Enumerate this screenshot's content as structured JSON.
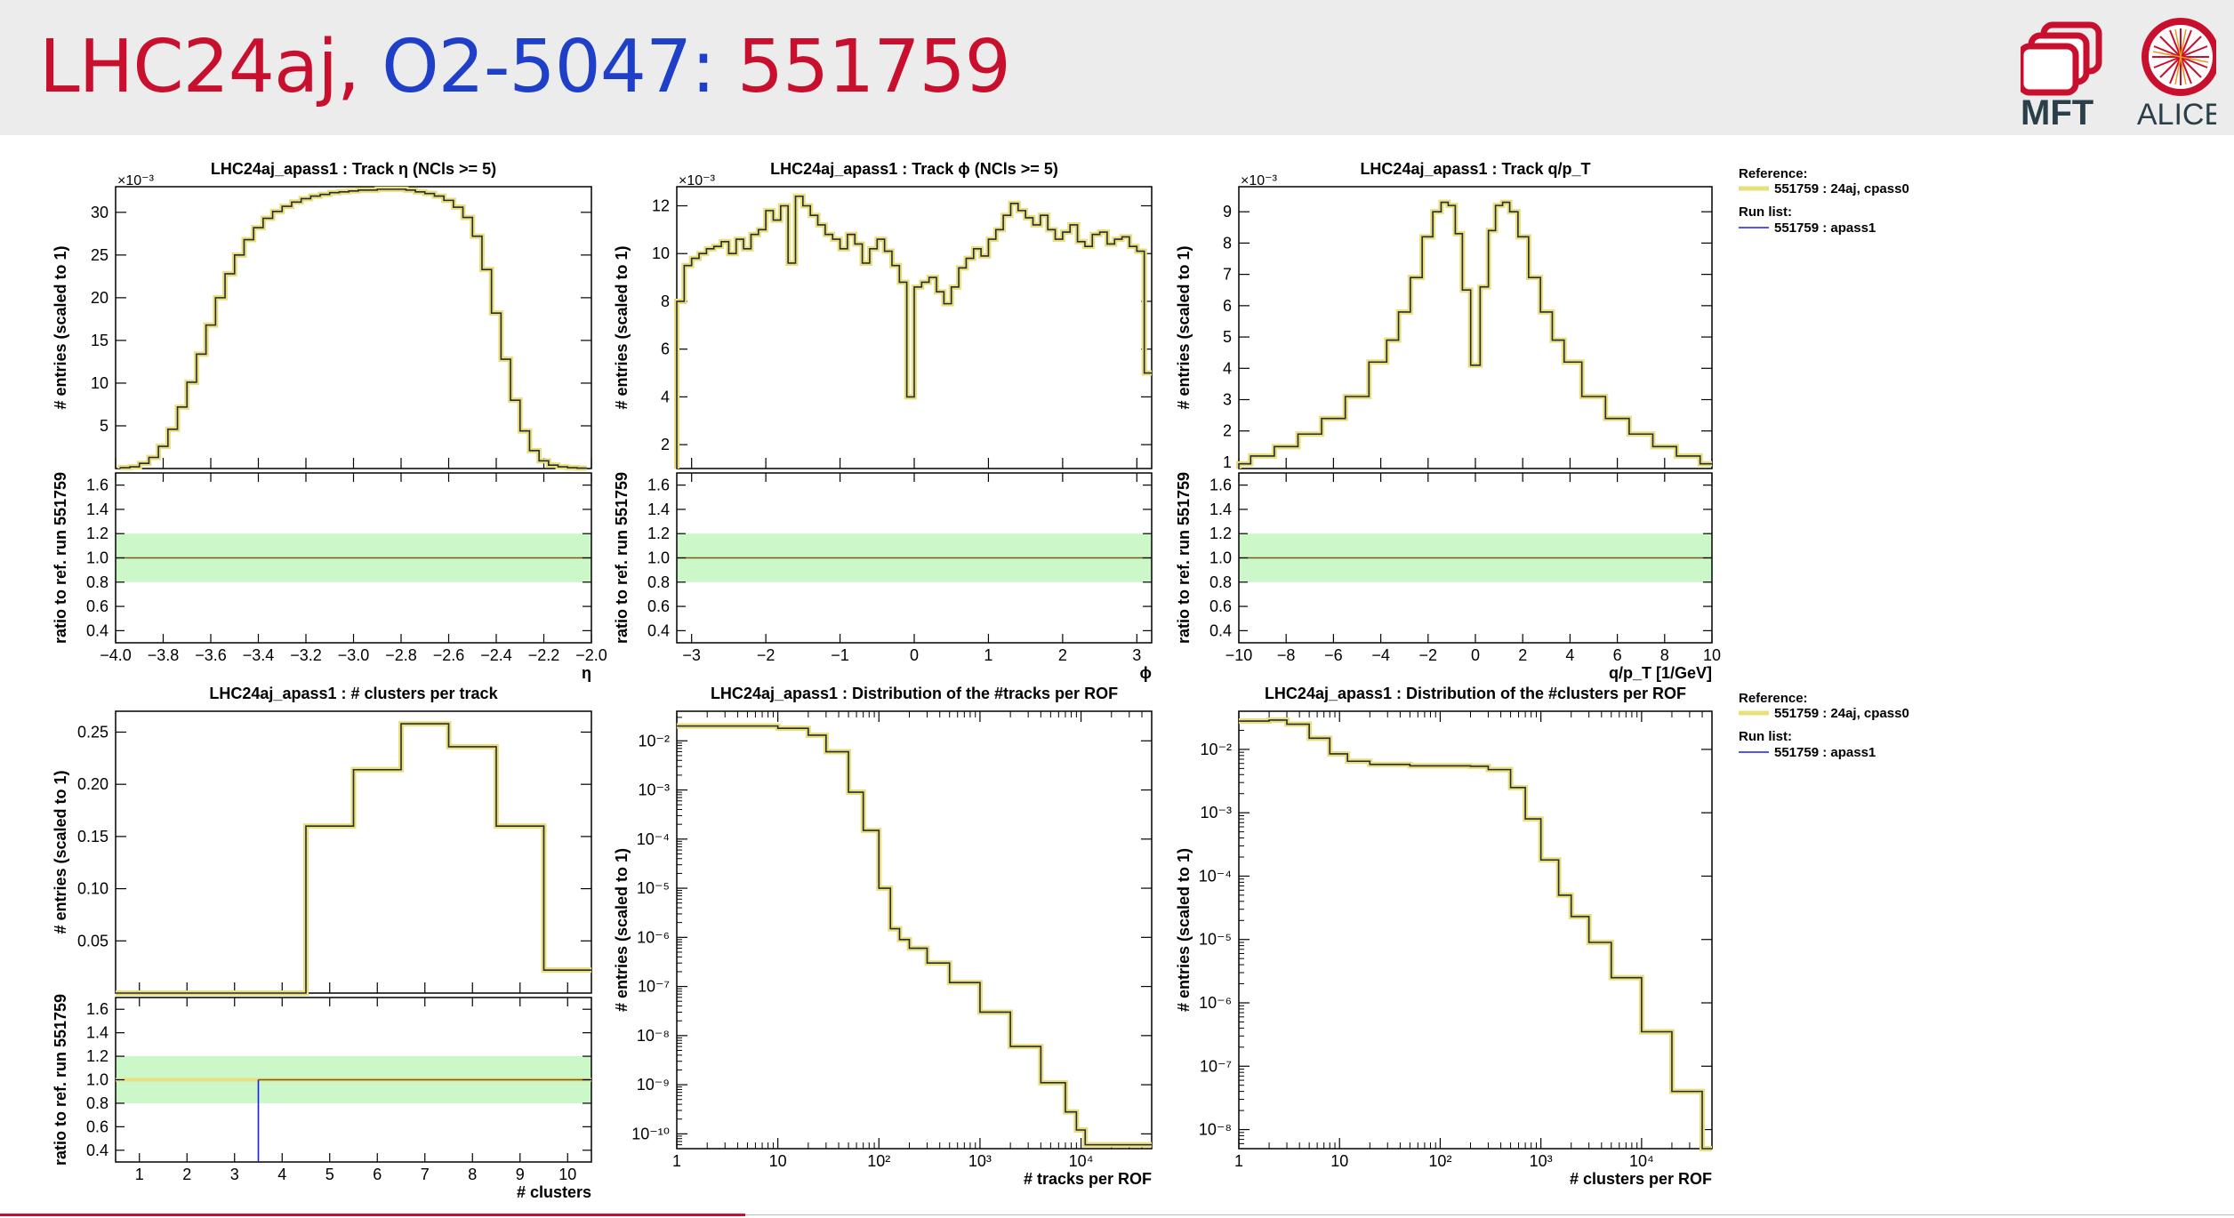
{
  "slide": {
    "title_part1": "LHC24aj,",
    "title_part2": "O2-5047:",
    "title_part3": "551759",
    "logos": [
      "MFT",
      "ALICE"
    ]
  },
  "colors": {
    "reference": "#e8e07a",
    "run": "#1a1aff",
    "band": "#ccf7c8",
    "unity": "#7a5a1a",
    "title_red": "#c8102e",
    "title_blue": "#1f3fc8"
  },
  "legends": [
    {
      "reference_title": "Reference:",
      "reference_entry": "551759 : 24aj, cpass0",
      "run_title": "Run list:",
      "run_entry": "551759 : apass1"
    },
    {
      "reference_title": "Reference:",
      "reference_entry": "551759 : 24aj, cpass0",
      "run_title": "Run list:",
      "run_entry": "551759 : apass1"
    }
  ],
  "chart_data": [
    {
      "type": "line",
      "title": "LHC24aj_apass1 : Track  η (NCls >= 5)",
      "ylabel": "# entries (scaled to 1)",
      "exponent_label": "×10⁻³",
      "xlabel": "η",
      "ratio_ylabel": "ratio to ref. run 551759",
      "xlim": [
        -4.0,
        -2.0
      ],
      "ylim": [
        0,
        33
      ],
      "xticks": [
        -4.0,
        -3.8,
        -3.6,
        -3.4,
        -3.2,
        -3.0,
        -2.8,
        -2.6,
        -2.4,
        -2.2,
        -2.0
      ],
      "xtick_labels": [
        "−4.0",
        "−3.8",
        "−3.6",
        "−3.4",
        "−3.2",
        "−3.0",
        "−2.8",
        "−2.6",
        "−2.4",
        "−2.2",
        "−2.0"
      ],
      "yticks": [
        5,
        10,
        15,
        20,
        25,
        30
      ],
      "ytick_labels": [
        "5",
        "10",
        "15",
        "20",
        "25",
        "30"
      ],
      "ratio_ylim": [
        0.3,
        1.7
      ],
      "ratio_yticks": [
        0.4,
        0.6,
        0.8,
        1.0,
        1.2,
        1.4,
        1.6
      ],
      "ratio_ytick_labels": [
        "0.4",
        "0.6",
        "0.8",
        "1.0",
        "1.2",
        "1.4",
        "1.6"
      ],
      "x": [
        -3.96,
        -3.92,
        -3.88,
        -3.84,
        -3.8,
        -3.76,
        -3.72,
        -3.68,
        -3.64,
        -3.6,
        -3.56,
        -3.52,
        -3.48,
        -3.44,
        -3.4,
        -3.36,
        -3.32,
        -3.28,
        -3.24,
        -3.2,
        -3.16,
        -3.12,
        -3.08,
        -3.04,
        -3.0,
        -2.96,
        -2.92,
        -2.88,
        -2.84,
        -2.8,
        -2.76,
        -2.72,
        -2.68,
        -2.64,
        -2.6,
        -2.56,
        -2.52,
        -2.48,
        -2.44,
        -2.4,
        -2.36,
        -2.32,
        -2.28,
        -2.24,
        -2.2,
        -2.16,
        -2.12,
        -2.08,
        -2.04
      ],
      "series": [
        {
          "values": [
            0.1,
            0.2,
            0.6,
            1.3,
            2.6,
            4.6,
            7.2,
            10.1,
            13.4,
            16.8,
            20.0,
            22.8,
            25.0,
            26.8,
            28.2,
            29.3,
            30.1,
            30.7,
            31.2,
            31.6,
            31.9,
            32.1,
            32.3,
            32.4,
            32.5,
            32.6,
            32.6,
            32.7,
            32.7,
            32.7,
            32.6,
            32.4,
            32.2,
            31.9,
            31.4,
            30.6,
            29.4,
            27.2,
            23.3,
            18.2,
            12.8,
            8.0,
            4.4,
            2.1,
            0.9,
            0.4,
            0.2,
            0.1,
            0.05
          ]
        }
      ],
      "ratio_band": [
        0.8,
        1.2
      ],
      "ratio_line": 1.0
    },
    {
      "type": "line",
      "title": "LHC24aj_apass1 : Track  ϕ (NCls >= 5)",
      "ylabel": "# entries (scaled to 1)",
      "exponent_label": "×10⁻³",
      "xlabel": "ϕ",
      "ratio_ylabel": "ratio to ref. run 551759",
      "xlim": [
        -3.2,
        3.2
      ],
      "ylim": [
        1,
        12.8
      ],
      "xticks": [
        -3,
        -2,
        -1,
        0,
        1,
        2,
        3
      ],
      "xtick_labels": [
        "−3",
        "−2",
        "−1",
        "0",
        "1",
        "2",
        "3"
      ],
      "yticks": [
        2,
        4,
        6,
        8,
        10,
        12
      ],
      "ytick_labels": [
        "2",
        "4",
        "6",
        "8",
        "10",
        "12"
      ],
      "ratio_ylim": [
        0.3,
        1.7
      ],
      "ratio_yticks": [
        0.4,
        0.6,
        0.8,
        1.0,
        1.2,
        1.4,
        1.6
      ],
      "ratio_ytick_labels": [
        "0.4",
        "0.6",
        "0.8",
        "1.0",
        "1.2",
        "1.4",
        "1.6"
      ],
      "x": [
        -3.15,
        -3.05,
        -2.95,
        -2.85,
        -2.75,
        -2.65,
        -2.55,
        -2.45,
        -2.35,
        -2.25,
        -2.15,
        -2.05,
        -1.95,
        -1.85,
        -1.75,
        -1.65,
        -1.55,
        -1.45,
        -1.35,
        -1.25,
        -1.15,
        -1.05,
        -0.95,
        -0.85,
        -0.75,
        -0.65,
        -0.55,
        -0.45,
        -0.35,
        -0.25,
        -0.15,
        -0.05,
        0.05,
        0.15,
        0.25,
        0.35,
        0.45,
        0.55,
        0.65,
        0.75,
        0.85,
        0.95,
        1.05,
        1.15,
        1.25,
        1.35,
        1.45,
        1.55,
        1.65,
        1.75,
        1.85,
        1.95,
        2.05,
        2.15,
        2.25,
        2.35,
        2.45,
        2.55,
        2.65,
        2.75,
        2.85,
        2.95,
        3.05,
        3.15
      ],
      "series": [
        {
          "values": [
            8.0,
            9.5,
            9.8,
            10.0,
            10.2,
            10.3,
            10.5,
            10.0,
            10.6,
            10.2,
            10.8,
            11.0,
            11.8,
            11.4,
            12.0,
            9.6,
            12.4,
            12.0,
            11.6,
            11.2,
            10.8,
            10.6,
            10.2,
            10.8,
            10.4,
            9.6,
            10.2,
            10.6,
            10.1,
            9.5,
            8.8,
            4.0,
            8.6,
            8.8,
            9.0,
            8.4,
            7.9,
            8.6,
            9.4,
            9.8,
            10.2,
            9.9,
            10.6,
            11.0,
            11.6,
            12.1,
            11.8,
            11.5,
            11.2,
            11.6,
            11.0,
            10.6,
            10.9,
            11.2,
            10.5,
            10.3,
            10.8,
            10.9,
            10.4,
            10.6,
            10.7,
            10.3,
            10.1,
            5.0
          ]
        }
      ],
      "ratio_band": [
        0.8,
        1.2
      ],
      "ratio_line": 1.0
    },
    {
      "type": "line",
      "title": "LHC24aj_apass1 : Track q/p_T",
      "ylabel": "# entries (scaled to 1)",
      "exponent_label": "×10⁻³",
      "xlabel": "q/p_T [1/GeV]",
      "ratio_ylabel": "ratio to ref. run 551759",
      "xlim": [
        -10,
        10
      ],
      "ylim": [
        0.8,
        9.8
      ],
      "xticks": [
        -10,
        -8,
        -6,
        -4,
        -2,
        0,
        2,
        4,
        6,
        8,
        10
      ],
      "xtick_labels": [
        "−10",
        "−8",
        "−6",
        "−4",
        "−2",
        "0",
        "2",
        "4",
        "6",
        "8",
        "10"
      ],
      "yticks": [
        1,
        2,
        3,
        4,
        5,
        6,
        7,
        8,
        9
      ],
      "ytick_labels": [
        "1",
        "2",
        "3",
        "4",
        "5",
        "6",
        "7",
        "8",
        "9"
      ],
      "ratio_ylim": [
        0.3,
        1.7
      ],
      "ratio_yticks": [
        0.4,
        0.6,
        0.8,
        1.0,
        1.2,
        1.4,
        1.6
      ],
      "ratio_ytick_labels": [
        "0.4",
        "0.6",
        "0.8",
        "1.0",
        "1.2",
        "1.4",
        "1.6"
      ],
      "x": [
        -10,
        -9,
        -8,
        -7,
        -6,
        -5,
        -4,
        -3.5,
        -3,
        -2.5,
        -2,
        -1.6,
        -1.3,
        -1.0,
        -0.7,
        -0.4,
        0,
        0.4,
        0.7,
        1.0,
        1.3,
        1.6,
        2,
        2.5,
        3,
        3.5,
        4,
        5,
        6,
        7,
        8,
        9,
        10
      ],
      "series": [
        {
          "values": [
            0.95,
            1.2,
            1.5,
            1.9,
            2.4,
            3.1,
            4.2,
            4.9,
            5.8,
            6.9,
            8.2,
            9.0,
            9.3,
            9.2,
            8.3,
            6.5,
            4.1,
            6.6,
            8.4,
            9.2,
            9.3,
            9.0,
            8.2,
            6.9,
            5.8,
            4.9,
            4.2,
            3.1,
            2.4,
            1.9,
            1.5,
            1.2,
            0.95
          ]
        }
      ],
      "ratio_band": [
        0.8,
        1.2
      ],
      "ratio_line": 1.0
    },
    {
      "type": "line",
      "title": "LHC24aj_apass1 : # clusters per track",
      "ylabel": "# entries (scaled to 1)",
      "xlabel": "# clusters",
      "ratio_ylabel": "ratio to ref. run 551759",
      "xlim": [
        0.5,
        10.5
      ],
      "ylim": [
        0,
        0.27
      ],
      "xticks": [
        1,
        2,
        3,
        4,
        5,
        6,
        7,
        8,
        9,
        10
      ],
      "xtick_labels": [
        "1",
        "2",
        "3",
        "4",
        "5",
        "6",
        "7",
        "8",
        "9",
        "10"
      ],
      "yticks": [
        0.05,
        0.1,
        0.15,
        0.2,
        0.25
      ],
      "ytick_labels": [
        "0.05",
        "0.10",
        "0.15",
        "0.20",
        "0.25"
      ],
      "ratio_ylim": [
        0.3,
        1.7
      ],
      "ratio_yticks": [
        0.4,
        0.6,
        0.8,
        1.0,
        1.2,
        1.4,
        1.6
      ],
      "ratio_ytick_labels": [
        "0.4",
        "0.6",
        "0.8",
        "1.0",
        "1.2",
        "1.4",
        "1.6"
      ],
      "x": [
        1,
        2,
        3,
        4,
        5,
        6,
        7,
        8,
        9,
        10
      ],
      "series": [
        {
          "values": [
            0,
            0,
            0,
            0,
            0.16,
            0.214,
            0.258,
            0.236,
            0.16,
            0.022
          ]
        }
      ],
      "ratio_band": [
        0.8,
        1.2
      ],
      "ratio_line": 1.0
    },
    {
      "type": "line",
      "title": "LHC24aj_apass1 : Distribution of the #tracks per ROF",
      "ylabel": "# entries (scaled to 1)",
      "xlabel": "# tracks per ROF",
      "xscale": "log",
      "yscale": "log",
      "xlim": [
        1,
        50000
      ],
      "ylim": [
        5e-11,
        0.04
      ],
      "xticks": [
        1,
        10,
        100,
        1000,
        10000
      ],
      "xtick_labels": [
        "1",
        "10",
        "10²",
        "10³",
        "10⁴"
      ],
      "yticks": [
        1e-10,
        1e-09,
        1e-08,
        1e-07,
        1e-06,
        1e-05,
        0.0001,
        0.001,
        0.01
      ],
      "ytick_labels": [
        "10⁻¹⁰",
        "10⁻⁹",
        "10⁻⁸",
        "10⁻⁷",
        "10⁻⁶",
        "10⁻⁵",
        "10⁻⁴",
        "10⁻³",
        "10⁻²"
      ],
      "x": [
        1,
        2,
        5,
        10,
        20,
        30,
        50,
        70,
        100,
        130,
        160,
        200,
        300,
        500,
        1000,
        2000,
        4000,
        7000,
        9000,
        11000,
        50000
      ],
      "series": [
        {
          "values": [
            0.02,
            0.02,
            0.02,
            0.018,
            0.013,
            0.006,
            0.0009,
            0.00015,
            1e-05,
            1.5e-06,
            9e-07,
            6e-07,
            3e-07,
            1.2e-07,
            3e-08,
            6e-09,
            1.1e-09,
            2.8e-10,
            1.2e-10,
            6e-11,
            6e-11
          ]
        }
      ]
    },
    {
      "type": "line",
      "title": "LHC24aj_apass1 : Distribution of the #clusters per ROF",
      "ylabel": "# entries (scaled to 1)",
      "xlabel": "# clusters per ROF",
      "xscale": "log",
      "yscale": "log",
      "xlim": [
        1,
        50000
      ],
      "ylim": [
        5e-09,
        0.04
      ],
      "xticks": [
        1,
        10,
        100,
        1000,
        10000
      ],
      "xtick_labels": [
        "1",
        "10",
        "10²",
        "10³",
        "10⁴"
      ],
      "yticks": [
        1e-08,
        1e-07,
        1e-06,
        1e-05,
        0.0001,
        0.001,
        0.01
      ],
      "ytick_labels": [
        "10⁻⁸",
        "10⁻⁷",
        "10⁻⁶",
        "10⁻⁵",
        "10⁻⁴",
        "10⁻³",
        "10⁻²"
      ],
      "x": [
        1,
        2,
        3,
        5,
        8,
        12,
        20,
        50,
        100,
        200,
        300,
        500,
        700,
        1000,
        1500,
        2000,
        3000,
        5000,
        10000,
        20000,
        40000
      ],
      "series": [
        {
          "values": [
            0.028,
            0.029,
            0.025,
            0.015,
            0.0085,
            0.0065,
            0.0058,
            0.0055,
            0.0055,
            0.0054,
            0.0048,
            0.0025,
            0.0008,
            0.00018,
            5e-05,
            2.3e-05,
            9e-06,
            2.5e-06,
            3.5e-07,
            4e-08,
            5e-09
          ]
        }
      ]
    }
  ]
}
